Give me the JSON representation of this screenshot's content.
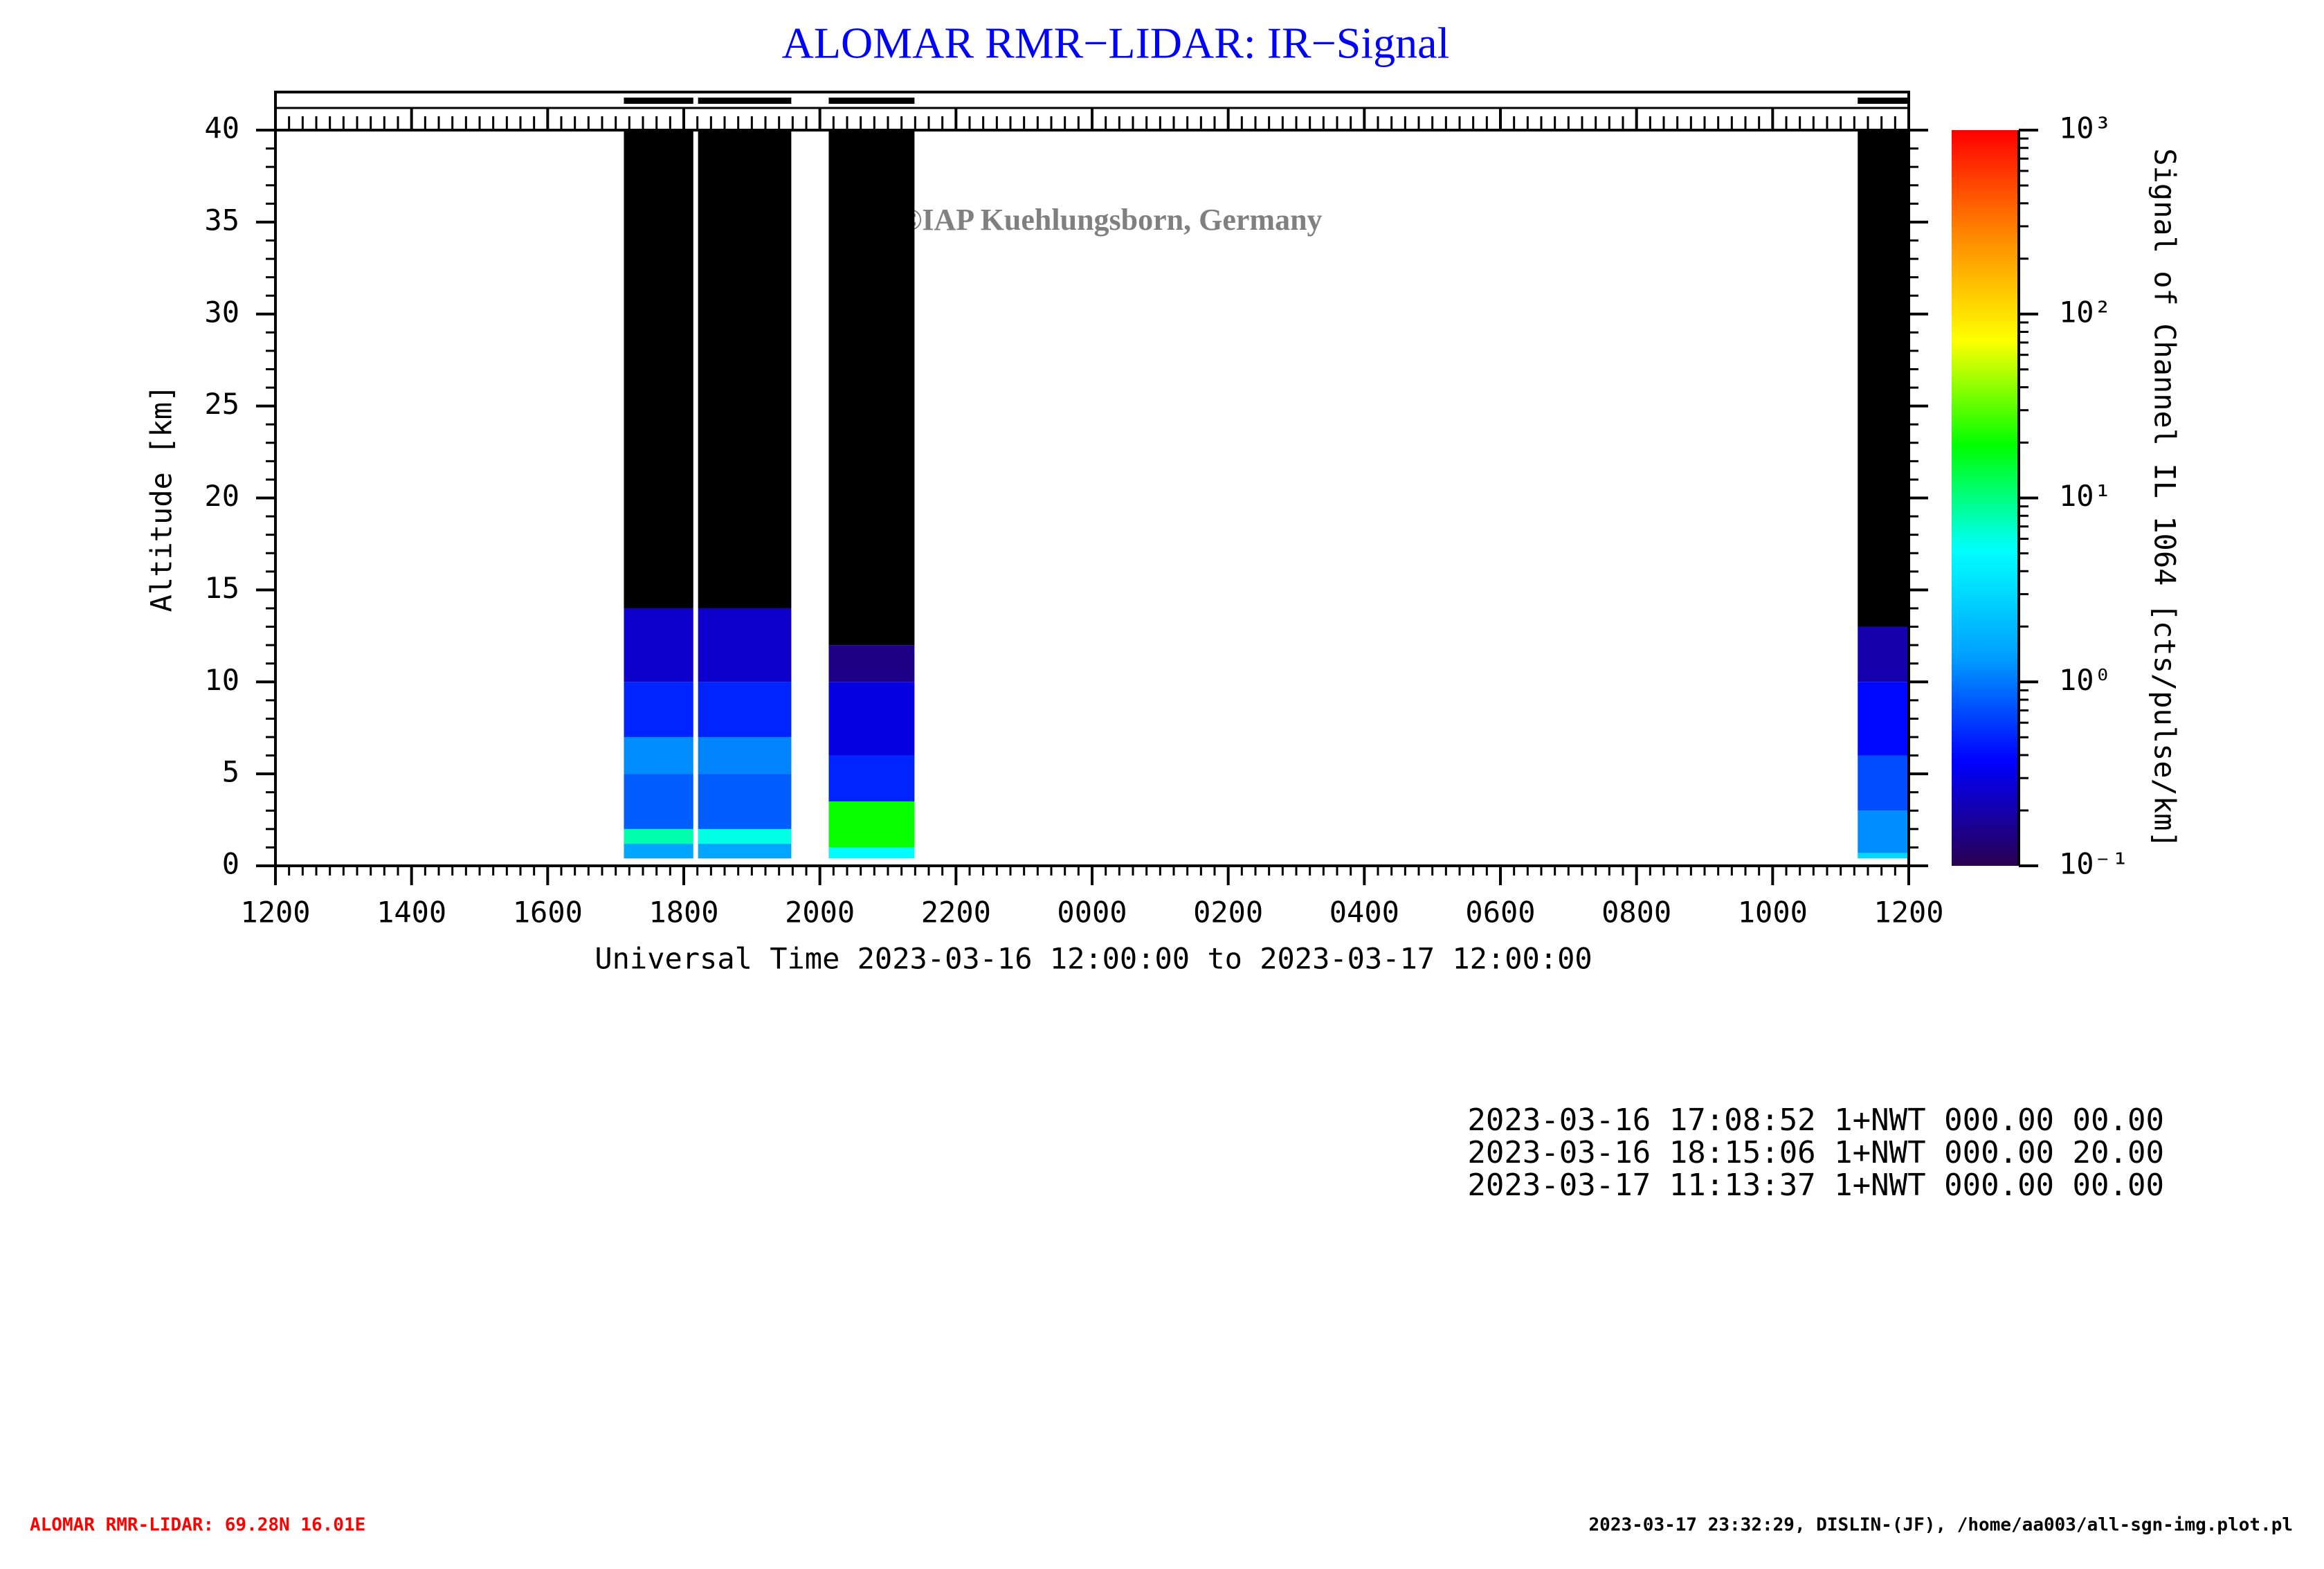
{
  "chart_data": {
    "type": "heatmap",
    "title": "ALOMAR RMR−LIDAR: IR−Signal",
    "watermark": "©IAP Kuehlungsborn, Germany",
    "x_label": "Universal Time 2023-03-16 12:00:00 to 2023-03-17 12:00:00",
    "y_label": "Altitude [km]",
    "colorbar_label": "Signal of Channel IL 1064 [cts/pulse/km]",
    "xlim": [
      0,
      24
    ],
    "xticks": [
      {
        "value": 0,
        "label": "1200"
      },
      {
        "value": 2,
        "label": "1400"
      },
      {
        "value": 4,
        "label": "1600"
      },
      {
        "value": 6,
        "label": "1800"
      },
      {
        "value": 8,
        "label": "2000"
      },
      {
        "value": 10,
        "label": "2200"
      },
      {
        "value": 12,
        "label": "0000"
      },
      {
        "value": 14,
        "label": "0200"
      },
      {
        "value": 16,
        "label": "0400"
      },
      {
        "value": 18,
        "label": "0600"
      },
      {
        "value": 20,
        "label": "0800"
      },
      {
        "value": 22,
        "label": "1000"
      },
      {
        "value": 24,
        "label": "1200"
      }
    ],
    "ylim": [
      0,
      40
    ],
    "yticks": [
      0,
      5,
      10,
      15,
      20,
      25,
      30,
      35,
      40
    ],
    "clim": [
      0.1,
      1000
    ],
    "clog": true,
    "cticks": [
      {
        "value": 0.1,
        "label": "10⁻¹"
      },
      {
        "value": 1,
        "label": "10⁰"
      },
      {
        "value": 10,
        "label": "10¹"
      },
      {
        "value": 100,
        "label": "10²"
      },
      {
        "value": 1000,
        "label": "10³"
      }
    ],
    "colormap": [
      "#2a0050",
      "#0000ff",
      "#00a0ff",
      "#00ffff",
      "#00ff00",
      "#ffff00",
      "#ff8800",
      "#ff0000"
    ],
    "under_color": "#000000",
    "blocks": [
      {
        "start": 5.12,
        "end": 6.14,
        "altitudes": [
          0.4,
          1.2,
          2,
          5,
          7,
          10,
          14,
          40
        ],
        "values": [
          1.5,
          8,
          0.8,
          1.2,
          0.5,
          0.25,
          0.05
        ]
      },
      {
        "start": 6.21,
        "end": 7.58,
        "altitudes": [
          0.4,
          1.2,
          2,
          5,
          7,
          10,
          14,
          40
        ],
        "values": [
          1.5,
          6,
          0.8,
          1.1,
          0.5,
          0.25,
          0.05
        ]
      },
      {
        "start": 8.13,
        "end": 9.39,
        "altitudes": [
          0.4,
          1,
          3.5,
          6,
          10,
          12,
          40
        ],
        "values": [
          5,
          20,
          0.5,
          0.3,
          0.15,
          0.05
        ]
      },
      {
        "start": 23.25,
        "end": 24,
        "altitudes": [
          0.4,
          0.7,
          3,
          6,
          10,
          13,
          40
        ],
        "values": [
          3,
          1.2,
          0.7,
          0.4,
          0.2,
          0.05
        ]
      }
    ],
    "log_lines": [
      "2023-03-16 17:08:52 1+NWT 000.00 00.00",
      "2023-03-16 18:15:06 1+NWT 000.00 20.00",
      "2023-03-17 11:13:37 1+NWT 000.00 00.00"
    ],
    "footer_left": "ALOMAR RMR-LIDAR: 69.28N 16.01E",
    "footer_right": "2023-03-17 23:32:29, DISLIN-(JF), /home/aa003/all-sgn-img.plot.pl"
  }
}
